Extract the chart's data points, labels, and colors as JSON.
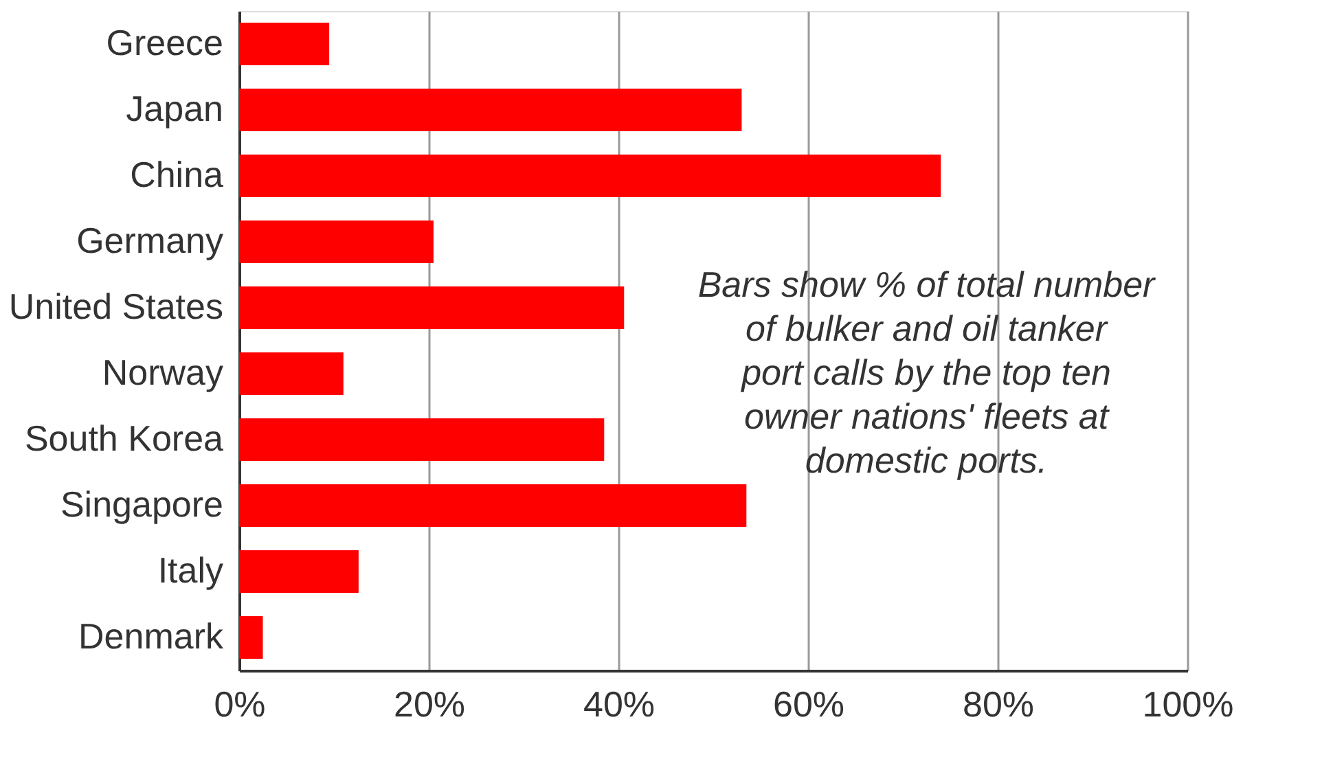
{
  "chart_data": {
    "type": "bar",
    "orientation": "horizontal",
    "categories": [
      "Greece",
      "Japan",
      "China",
      "Germany",
      "United States",
      "Norway",
      "South Korea",
      "Singapore",
      "Italy",
      "Denmark"
    ],
    "values": [
      9.5,
      53,
      74,
      20.5,
      40.6,
      11,
      38.5,
      53.5,
      12.6,
      2.5
    ],
    "color": "#ff0000",
    "xlim": [
      0,
      100
    ],
    "xticks": [
      {
        "value": 0,
        "label": "0%"
      },
      {
        "value": 20,
        "label": "20%"
      },
      {
        "value": 40,
        "label": "40%"
      },
      {
        "value": 60,
        "label": "60%"
      },
      {
        "value": 80,
        "label": "80%"
      },
      {
        "value": 100,
        "label": "100%"
      }
    ],
    "grid": "x",
    "annotations": [
      "Bars show % of total number of bulker and oil tanker port calls by the top ten owner nations' fleets at domestic ports."
    ]
  }
}
